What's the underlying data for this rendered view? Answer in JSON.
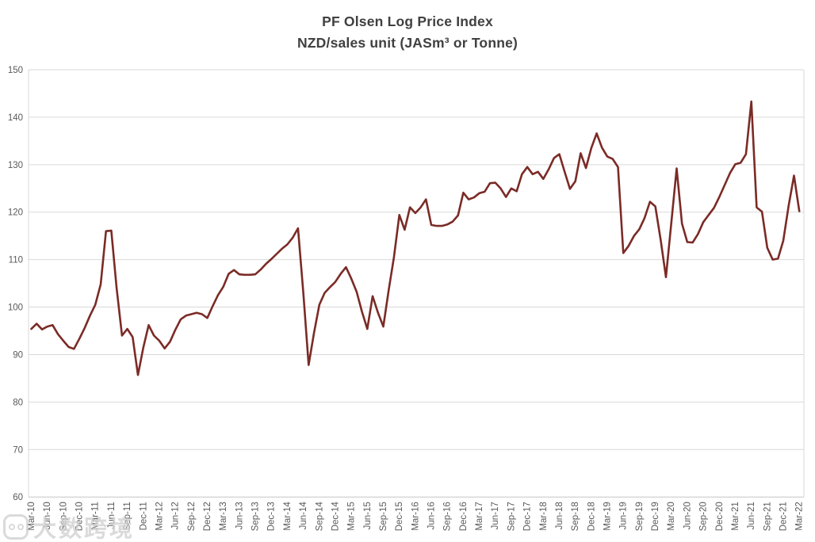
{
  "title": {
    "line1": "PF Olsen Log Price Index",
    "line2": "NZD/sales unit (JASm³ or Tonne)"
  },
  "watermark": {
    "icon": "rounded-square-logo",
    "text": "大数跨境"
  },
  "colors": {
    "background": "#FFFFFF",
    "line": "#7B2B26",
    "gridline": "#D9D9D9",
    "axis_line": "#C6C6C6",
    "tick_label": "#595959",
    "title": "#404040",
    "watermark": "#D2D2D2"
  },
  "chart_data": {
    "type": "line",
    "title": "PF Olsen Log Price Index",
    "subtitle": "NZD/sales unit (JASm³ or Tonne)",
    "xlabel": "",
    "ylabel": "",
    "ylim": [
      60,
      150
    ],
    "y_tick_step": 10,
    "grid": "horizontal",
    "legend": "none",
    "x_frequency": "monthly",
    "x_start": "Mar-10",
    "x_end": "Mar-22",
    "x_tick_labels": [
      "Mar-10",
      "Jun-10",
      "Sep-10",
      "Dec-10",
      "Mar-11",
      "Jun-11",
      "Sep-11",
      "Dec-11",
      "Mar-12",
      "Jun-12",
      "Sep-12",
      "Dec-12",
      "Mar-13",
      "Jun-13",
      "Sep-13",
      "Dec-13",
      "Mar-14",
      "Jun-14",
      "Sep-14",
      "Dec-14",
      "Mar-15",
      "Jun-15",
      "Sep-15",
      "Dec-15",
      "Mar-16",
      "Jun-16",
      "Sep-16",
      "Dec-16",
      "Mar-17",
      "Jun-17",
      "Sep-17",
      "Dec-17",
      "Mar-18",
      "Jun-18",
      "Sep-18",
      "Dec-18",
      "Mar-19",
      "Jun-19",
      "Sep-19",
      "Dec-19",
      "Mar-20",
      "Jun-20",
      "Sep-20",
      "Dec-20",
      "Mar-21",
      "Jun-21",
      "Sep-21",
      "Dec-21",
      "Mar-22"
    ],
    "y_tick_labels": [
      150,
      140,
      130,
      120,
      110,
      100,
      90,
      80,
      70,
      60
    ],
    "series": [
      {
        "name": "Log Price Index (NZD/sales unit)",
        "values": [
          95.4,
          96.5,
          95.3,
          95.9,
          96.2,
          94.3,
          92.9,
          91.6,
          91.2,
          93.3,
          95.6,
          98.2,
          100.5,
          104.8,
          116.0,
          116.1,
          104.0,
          94.0,
          95.4,
          93.7,
          85.7,
          91.5,
          96.2,
          94.0,
          92.9,
          91.3,
          92.7,
          95.2,
          97.4,
          98.2,
          98.5,
          98.8,
          98.5,
          97.7,
          100.2,
          102.5,
          104.3,
          107.0,
          107.8,
          106.9,
          106.8,
          106.8,
          106.9,
          107.9,
          109.1,
          110.1,
          111.2,
          112.3,
          113.2,
          114.6,
          116.6,
          103.0,
          87.8,
          94.5,
          100.5,
          103.0,
          104.2,
          105.3,
          107.0,
          108.4,
          106.0,
          103.2,
          99.0,
          95.4,
          102.3,
          98.8,
          95.9,
          103.5,
          110.5,
          119.4,
          116.3,
          121.0,
          119.8,
          121.0,
          122.7,
          117.3,
          117.1,
          117.1,
          117.4,
          118.0,
          119.3,
          124.1,
          122.7,
          123.1,
          124.0,
          124.3,
          126.1,
          126.2,
          125.0,
          123.2,
          125.0,
          124.4,
          128.0,
          129.5,
          128.0,
          128.5,
          127.0,
          129.0,
          131.4,
          132.2,
          128.5,
          124.9,
          126.5,
          132.4,
          129.3,
          133.5,
          136.6,
          133.6,
          131.7,
          131.2,
          129.5,
          111.4,
          112.9,
          115.0,
          116.4,
          118.8,
          122.2,
          121.2,
          114.2,
          106.3,
          117.8,
          129.2,
          117.6,
          113.7,
          113.6,
          115.4,
          117.9,
          119.4,
          120.9,
          123.2,
          125.7,
          128.2,
          130.1,
          130.4,
          132.2,
          143.3,
          121.0,
          120.1,
          112.5,
          110.0,
          110.2,
          114.0,
          121.3,
          127.7,
          120.2
        ]
      }
    ]
  }
}
